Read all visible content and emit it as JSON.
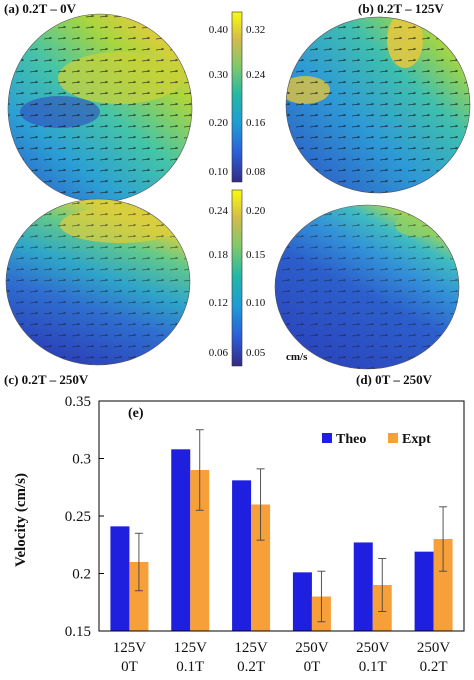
{
  "panels": {
    "a": {
      "label": "(a) 0.2T – 0V",
      "colors": [
        "#2f56c9",
        "#2ba0d4",
        "#44c4a8",
        "#a9d63e",
        "#f2c93a"
      ]
    },
    "b": {
      "label": "(b) 0.2T – 125V",
      "colors": [
        "#2c4fc4",
        "#2e9ad6",
        "#3fbfae",
        "#a6d641",
        "#efc83b"
      ]
    },
    "c": {
      "label": "(c) 0.2T – 250V",
      "colors": [
        "#2a2fb0",
        "#2f6fd0",
        "#2fa6c9",
        "#63c98a",
        "#d8cf3e"
      ]
    },
    "d": {
      "label": "(d) 0T – 250V",
      "colors": [
        "#2b3db8",
        "#2c5fcc",
        "#3392d8",
        "#3fbcc0",
        "#9fd45a"
      ]
    }
  },
  "colorbars": {
    "top_left_ticks": [
      "0.40",
      "0.30",
      "0.20",
      "0.10"
    ],
    "top_right_ticks": [
      "0.32",
      "0.24",
      "0.16",
      "0.08"
    ],
    "bottom_left_ticks": [
      "0.24",
      "0.18",
      "0.12",
      "0.06"
    ],
    "bottom_right_ticks": [
      "0.20",
      "0.15",
      "0.10",
      "0.05"
    ],
    "unit": "cm/s",
    "colors": [
      "#352a87",
      "#2a5fd8",
      "#1e9bd7",
      "#22b8a5",
      "#7fc96b",
      "#d3bb4b",
      "#f9fb0e"
    ]
  },
  "chart_data": {
    "type": "bar",
    "panel_label": "(e)",
    "categories": [
      [
        "125V",
        "0T"
      ],
      [
        "125V",
        "0.1T"
      ],
      [
        "125V",
        "0.2T"
      ],
      [
        "250V",
        "0T"
      ],
      [
        "250V",
        "0.1T"
      ],
      [
        "250V",
        "0.2T"
      ]
    ],
    "series": [
      {
        "name": "Theo",
        "color": "#1f1fe0",
        "values": [
          0.241,
          0.308,
          0.281,
          0.201,
          0.227,
          0.219
        ]
      },
      {
        "name": "Expt",
        "color": "#f7a03a",
        "values": [
          0.21,
          0.29,
          0.26,
          0.18,
          0.19,
          0.23
        ],
        "errors": [
          0.025,
          0.035,
          0.031,
          0.022,
          0.023,
          0.028
        ]
      }
    ],
    "ylabel": "Velocity (cm/s)",
    "xlabel": "",
    "ylim": [
      0.15,
      0.35
    ],
    "yticks": [
      "0.15",
      "0.2",
      "0.25",
      "0.3",
      "0.35"
    ],
    "legend_position": "top-right",
    "grid": false
  }
}
